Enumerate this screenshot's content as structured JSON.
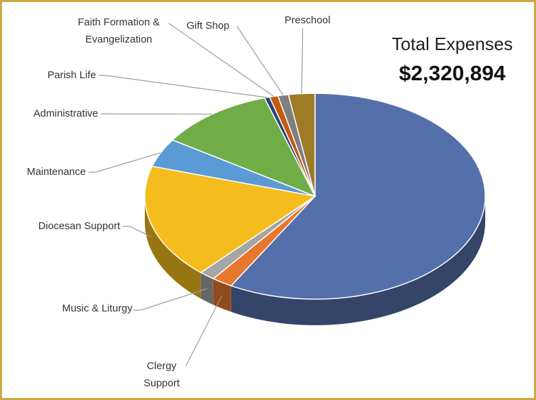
{
  "chart_data": {
    "type": "pie3d",
    "title": "Total Expenses",
    "subtitle": "$2,320,894",
    "categories": [
      null,
      "Clergy\nSupport",
      "Music & Liturgy",
      "Diocesan Support",
      "Maintenance",
      "Administrative",
      "Parish Life",
      "Faith Formation &\nEvangelization",
      "Gift Shop",
      "Preschool"
    ],
    "values": [
      58.2,
      2,
      1.5,
      18,
      4.5,
      11,
      0.5,
      0.8,
      1,
      2.5
    ],
    "colors": [
      "#5470aa",
      "#e8772e",
      "#a5a5a5",
      "#f4bc1c",
      "#5b9bd5",
      "#70ad47",
      "#264478",
      "#c55a11",
      "#7f7f7f",
      "#9e7b25"
    ]
  }
}
